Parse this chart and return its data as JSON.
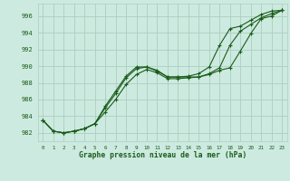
{
  "title": "Graphe pression niveau de la mer (hPa)",
  "background_color": "#cdeae0",
  "plot_bg_color": "#cdeae0",
  "grid_color": "#aacfbf",
  "line_color": "#1a5c1a",
  "ylim": [
    981.0,
    997.5
  ],
  "yticks": [
    982,
    984,
    986,
    988,
    990,
    992,
    994,
    996
  ],
  "xlim": [
    -0.5,
    23.5
  ],
  "xtick_labels": [
    "0",
    "1",
    "2",
    "3",
    "4",
    "5",
    "6",
    "7",
    "8",
    "9",
    "10",
    "11",
    "12",
    "13",
    "14",
    "15",
    "16",
    "17",
    "18",
    "19",
    "20",
    "21",
    "22",
    "23"
  ],
  "series": [
    [
      983.5,
      982.2,
      982.0,
      982.2,
      982.5,
      983.1,
      985.0,
      986.7,
      988.6,
      989.7,
      989.9,
      989.5,
      988.7,
      988.7,
      988.7,
      988.7,
      989.0,
      989.5,
      989.8,
      991.8,
      993.9,
      995.7,
      996.0,
      996.7
    ],
    [
      983.5,
      982.2,
      982.0,
      982.2,
      982.5,
      983.1,
      984.5,
      986.0,
      987.8,
      989.0,
      989.6,
      989.2,
      988.5,
      988.5,
      988.6,
      988.7,
      989.1,
      989.8,
      992.5,
      994.2,
      995.0,
      995.8,
      996.3,
      996.7
    ],
    [
      983.5,
      982.2,
      982.0,
      982.2,
      982.5,
      983.1,
      985.2,
      987.0,
      988.8,
      989.9,
      989.9,
      989.4,
      988.7,
      988.7,
      988.8,
      989.1,
      989.9,
      992.5,
      994.5,
      994.8,
      995.5,
      996.2,
      996.6,
      996.7
    ]
  ]
}
